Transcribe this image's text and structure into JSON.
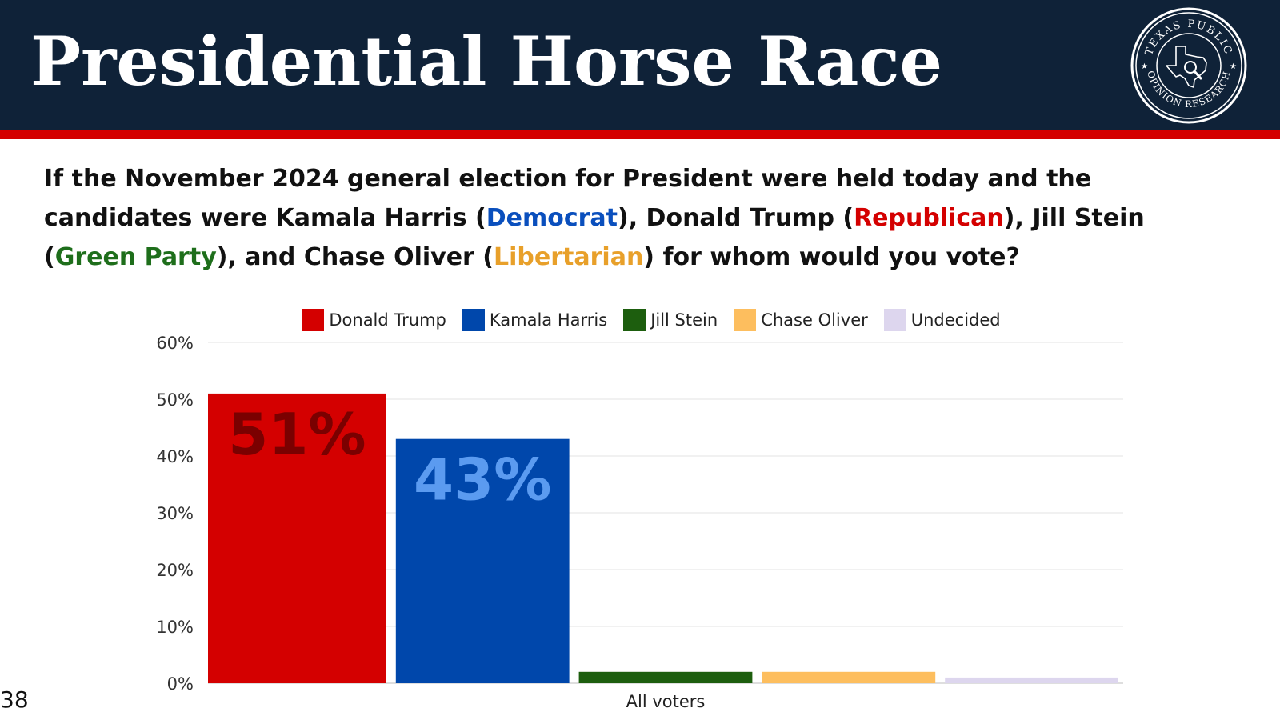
{
  "header": {
    "title": "Presidential Horse Race",
    "logo_text_top": "TEXAS PUBLIC",
    "logo_text_bottom": "OPINION RESEARCH",
    "colors": {
      "bg": "#0f2238",
      "stripe": "#d40000"
    }
  },
  "question": {
    "part1": "If the November 2024 general election for President were held today and the candidates were Kamala Harris (",
    "dem": "Democrat",
    "part2": "), Donald Trump (",
    "rep": "Republican",
    "part3": "), Jill Stein (",
    "grn": "Green Party",
    "part4": "), and Chase Oliver (",
    "lib": "Libertarian",
    "part5": ") for whom would you vote?"
  },
  "page_number": "38",
  "chart_data": {
    "type": "bar",
    "categories": [
      "All voters"
    ],
    "series": [
      {
        "name": "Donald Trump",
        "values": [
          51
        ],
        "color": "#d40000",
        "label": "51%",
        "label_color": "#7a0000"
      },
      {
        "name": "Kamala Harris",
        "values": [
          43
        ],
        "color": "#0047ab",
        "label": "43%",
        "label_color": "#5b9bf0"
      },
      {
        "name": "Jill Stein",
        "values": [
          2
        ],
        "color": "#1d5e0e"
      },
      {
        "name": "Chase Oliver",
        "values": [
          2
        ],
        "color": "#fdbe5e"
      },
      {
        "name": "Undecided",
        "values": [
          1
        ],
        "color": "#ddd6ee"
      }
    ],
    "ylim": [
      0,
      60
    ],
    "yticks": [
      0,
      10,
      20,
      30,
      40,
      50,
      60
    ],
    "ytick_labels": [
      "0%",
      "10%",
      "20%",
      "30%",
      "40%",
      "50%",
      "60%"
    ],
    "grid": true,
    "legend_position": "top"
  }
}
